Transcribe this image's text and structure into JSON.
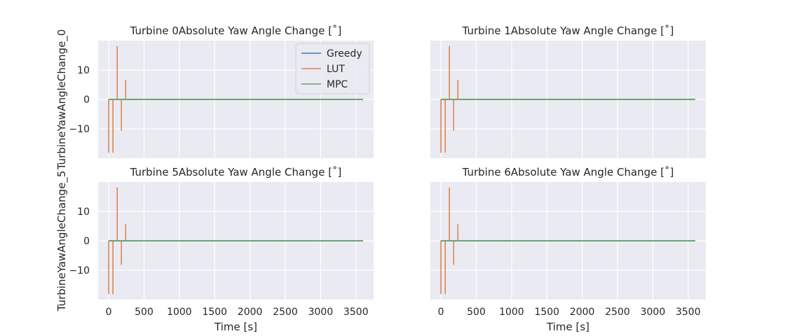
{
  "colors": {
    "Greedy": "#4c72b0",
    "LUT": "#dd8452",
    "MPC": "#55a868",
    "panel_bg": "#eaeaf2",
    "grid": "#ffffff"
  },
  "chart_data": [
    {
      "type": "line",
      "title": "Turbine 0Absolute Yaw Angle Change [˚]",
      "ylabel": "TurbineYawAngleChange_0",
      "xlabel": "",
      "xlim": [
        -150,
        3750
      ],
      "ylim": [
        -20,
        20
      ],
      "xticks": [
        0,
        500,
        1000,
        1500,
        2000,
        2500,
        3000,
        3500
      ],
      "yticks": [
        -10,
        0,
        10
      ],
      "show_xticklabels": false,
      "show_yticklabels": true,
      "grid": true,
      "legend": "top-right",
      "series": [
        {
          "name": "Greedy",
          "x": [
            0,
            3600
          ],
          "y": [
            0,
            0
          ]
        },
        {
          "name": "LUT",
          "x": [
            0,
            0,
            0,
            60,
            60,
            60,
            120,
            120,
            120,
            180,
            180,
            180,
            240,
            240,
            240,
            3600
          ],
          "y": [
            0,
            -18,
            0,
            0,
            -18,
            0,
            0,
            18,
            0,
            0,
            -10.5,
            0,
            0,
            6.5,
            0,
            0
          ]
        },
        {
          "name": "MPC",
          "x": [
            0,
            3600
          ],
          "y": [
            0,
            0
          ]
        }
      ]
    },
    {
      "type": "line",
      "title": "Turbine 1Absolute Yaw Angle Change [˚]",
      "ylabel": "",
      "xlabel": "",
      "xlim": [
        -150,
        3750
      ],
      "ylim": [
        -20,
        20
      ],
      "xticks": [
        0,
        500,
        1000,
        1500,
        2000,
        2500,
        3000,
        3500
      ],
      "yticks": [
        -10,
        0,
        10
      ],
      "show_xticklabels": false,
      "show_yticklabels": false,
      "grid": true,
      "legend": "none",
      "series": [
        {
          "name": "Greedy",
          "x": [
            0,
            3600
          ],
          "y": [
            0,
            0
          ]
        },
        {
          "name": "LUT",
          "x": [
            0,
            0,
            0,
            60,
            60,
            60,
            120,
            120,
            120,
            180,
            180,
            180,
            240,
            240,
            240,
            3600
          ],
          "y": [
            0,
            -18,
            0,
            0,
            -18,
            0,
            0,
            18,
            0,
            0,
            -10.5,
            0,
            0,
            6.5,
            0,
            0
          ]
        },
        {
          "name": "MPC",
          "x": [
            0,
            3600
          ],
          "y": [
            0,
            0
          ]
        }
      ]
    },
    {
      "type": "line",
      "title": "Turbine 5Absolute Yaw Angle Change [˚]",
      "ylabel": "TurbineYawAngleChange_5",
      "xlabel": "Time [s]",
      "xlim": [
        -150,
        3750
      ],
      "ylim": [
        -20,
        20
      ],
      "xticks": [
        0,
        500,
        1000,
        1500,
        2000,
        2500,
        3000,
        3500
      ],
      "yticks": [
        -10,
        0,
        10
      ],
      "show_xticklabels": true,
      "show_yticklabels": true,
      "grid": true,
      "legend": "none",
      "series": [
        {
          "name": "Greedy",
          "x": [
            0,
            3600
          ],
          "y": [
            0,
            0
          ]
        },
        {
          "name": "LUT",
          "x": [
            0,
            0,
            0,
            60,
            60,
            60,
            120,
            120,
            120,
            180,
            180,
            180,
            240,
            240,
            240,
            3600
          ],
          "y": [
            0,
            -18,
            0,
            0,
            -18,
            0,
            0,
            18,
            0,
            0,
            -8,
            0,
            0,
            5.5,
            0,
            0
          ]
        },
        {
          "name": "MPC",
          "x": [
            0,
            3600
          ],
          "y": [
            0,
            0
          ]
        }
      ]
    },
    {
      "type": "line",
      "title": "Turbine 6Absolute Yaw Angle Change [˚]",
      "ylabel": "",
      "xlabel": "Time [s]",
      "xlim": [
        -150,
        3750
      ],
      "ylim": [
        -20,
        20
      ],
      "xticks": [
        0,
        500,
        1000,
        1500,
        2000,
        2500,
        3000,
        3500
      ],
      "yticks": [
        -10,
        0,
        10
      ],
      "show_xticklabels": true,
      "show_yticklabels": false,
      "grid": true,
      "legend": "none",
      "series": [
        {
          "name": "Greedy",
          "x": [
            0,
            3600
          ],
          "y": [
            0,
            0
          ]
        },
        {
          "name": "LUT",
          "x": [
            0,
            0,
            0,
            60,
            60,
            60,
            120,
            120,
            120,
            180,
            180,
            180,
            240,
            240,
            240,
            3600
          ],
          "y": [
            0,
            -18,
            0,
            0,
            -18,
            0,
            0,
            18,
            0,
            0,
            -8,
            0,
            0,
            5.5,
            0,
            0
          ]
        },
        {
          "name": "MPC",
          "x": [
            0,
            3600
          ],
          "y": [
            0,
            0
          ]
        }
      ]
    }
  ]
}
